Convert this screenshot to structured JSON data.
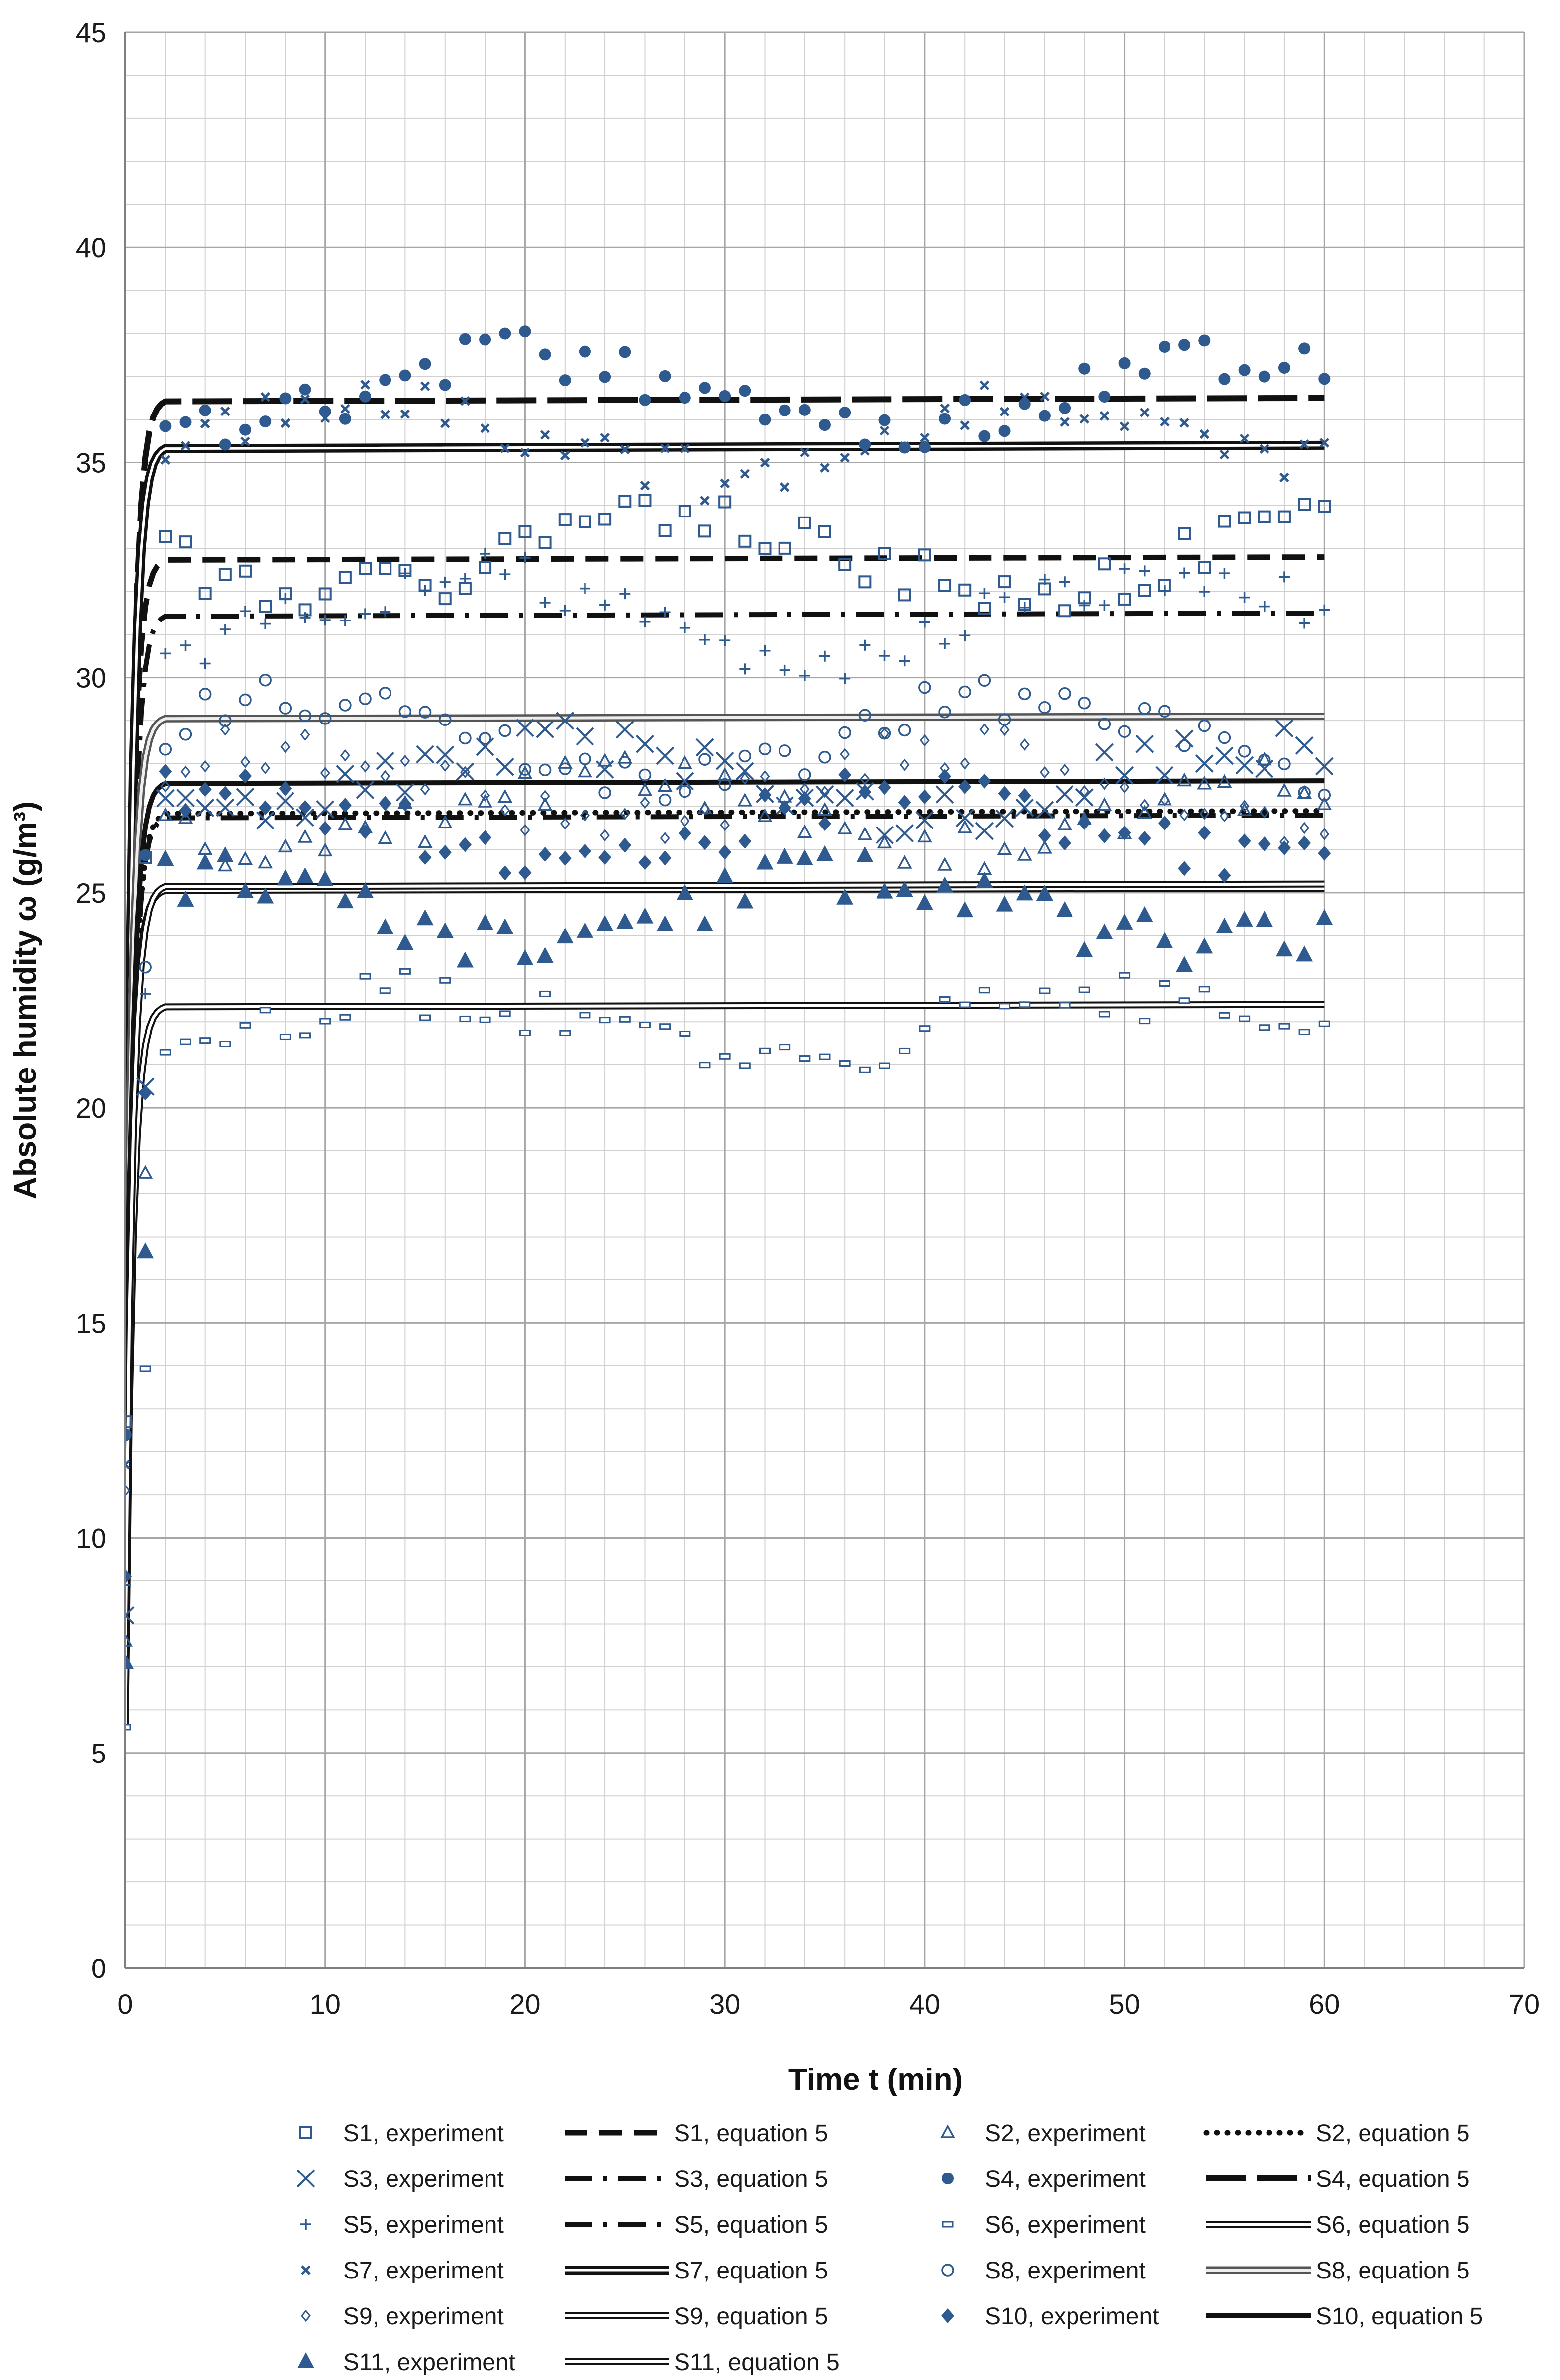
{
  "chart_data": {
    "type": "scatter",
    "xlabel": "Time t (min)",
    "ylabel": "Absolute humidity ω (g/m³)",
    "xlim": [
      0,
      70
    ],
    "ylim": [
      0,
      45
    ],
    "x_ticks": [
      "0",
      "10",
      "20",
      "30",
      "40",
      "50",
      "60",
      "70"
    ],
    "y_ticks": [
      "0",
      "5",
      "10",
      "15",
      "20",
      "25",
      "30",
      "35",
      "40",
      "45"
    ],
    "grid": true,
    "minor_grid": {
      "x_step": 2,
      "y_step": 1
    },
    "legend_position": "bottom",
    "colors": {
      "marker": "#2e5a8f",
      "line": "#111111",
      "grid_major": "#a6a6a6",
      "grid_minor": "#d0d0d0"
    },
    "experiment_series": [
      {
        "name": "S1, experiment",
        "marker": "square-open",
        "start": 12.7,
        "ss": 32.8,
        "amp": 0.8,
        "seed": 1
      },
      {
        "name": "S2, experiment",
        "marker": "triangle-open",
        "start": 7.6,
        "ss": 26.8,
        "amp": 0.8,
        "seed": 2
      },
      {
        "name": "S3, experiment",
        "marker": "x",
        "start": 8.2,
        "ss": 27.6,
        "amp": 0.8,
        "seed": 3
      },
      {
        "name": "S4, experiment",
        "marker": "circle-filled",
        "start": 12.4,
        "ss": 36.6,
        "amp": 0.9,
        "seed": 4
      },
      {
        "name": "S5, experiment",
        "marker": "plus",
        "start": 8.9,
        "ss": 31.4,
        "amp": 0.9,
        "seed": 5
      },
      {
        "name": "S6, experiment",
        "marker": "dash",
        "start": 5.6,
        "ss": 21.9,
        "amp": 0.7,
        "seed": 6
      },
      {
        "name": "S7, experiment",
        "marker": "x-small",
        "start": 11.7,
        "ss": 35.6,
        "amp": 0.9,
        "seed": 7
      },
      {
        "name": "S8, experiment",
        "marker": "circle-open",
        "start": 12.4,
        "ss": 28.6,
        "amp": 0.9,
        "seed": 8
      },
      {
        "name": "S9, experiment",
        "marker": "diamond-open",
        "start": 11.1,
        "ss": 27.5,
        "amp": 0.9,
        "seed": 9
      },
      {
        "name": "S10, experiment",
        "marker": "diamond-filled",
        "start": 9.1,
        "ss": 26.6,
        "amp": 0.8,
        "seed": 10
      },
      {
        "name": "S11, experiment",
        "marker": "triangle-filled",
        "start": 7.1,
        "ss": 24.6,
        "amp": 0.8,
        "seed": 11
      }
    ],
    "equation_series": [
      {
        "name": "S1, equation 5",
        "style": "dash",
        "start": 12.7,
        "ss": 32.8
      },
      {
        "name": "S2, equation 5",
        "style": "dot",
        "start": 7.6,
        "ss": 26.9
      },
      {
        "name": "S3, equation 5",
        "style": "dash-dot",
        "start": 8.2,
        "ss": 26.8
      },
      {
        "name": "S4, equation 5",
        "style": "long-dash",
        "start": 12.4,
        "ss": 36.5
      },
      {
        "name": "S5, equation 5",
        "style": "dash-dot",
        "start": 8.9,
        "ss": 31.5
      },
      {
        "name": "S6, equation 5",
        "style": "double",
        "start": 5.6,
        "ss": 22.4
      },
      {
        "name": "S7, equation 5",
        "style": "double-thick",
        "start": 11.7,
        "ss": 35.4
      },
      {
        "name": "S8, equation 5",
        "style": "double-gray",
        "start": 12.4,
        "ss": 29.1
      },
      {
        "name": "S9, equation 5",
        "style": "double",
        "start": 11.1,
        "ss": 25.1
      },
      {
        "name": "S10, equation 5",
        "style": "solid",
        "start": 9.1,
        "ss": 27.6
      },
      {
        "name": "S11, equation 5",
        "style": "double",
        "start": 7.1,
        "ss": 25.2
      }
    ]
  }
}
